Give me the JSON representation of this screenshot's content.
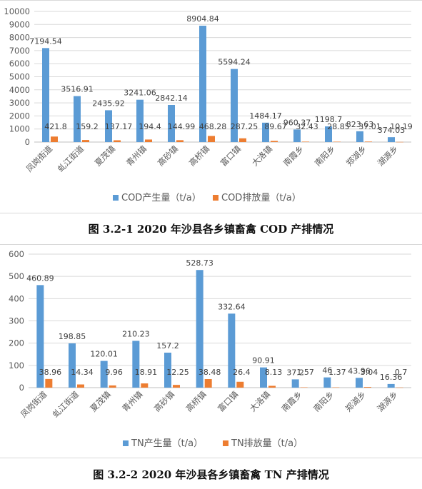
{
  "colors": {
    "produce": "#5B9BD5",
    "emit": "#ED7D31",
    "grid": "#d9d9d9",
    "axis_text": "#595959"
  },
  "captions": {
    "fig1": "图 3.2-1 2020 年沙县各乡镇畜禽 COD 产排情况",
    "fig2": "图 3.2-2 2020 年沙县各乡镇畜禽 TN 产排情况"
  },
  "chart_data": [
    {
      "type": "bar",
      "categories": [
        "凤岗街道",
        "虬江街道",
        "夏茂镇",
        "青州镇",
        "高砂镇",
        "高桥镇",
        "富口镇",
        "大洛镇",
        "南霞乡",
        "南阳乡",
        "郑湖乡",
        "湖源乡"
      ],
      "series": [
        {
          "name": "COD产生量（t/a）",
          "values": [
            7194.54,
            3516.91,
            2435.92,
            3241.06,
            2842.14,
            8904.84,
            5594.24,
            1484.17,
            960.37,
            1198.7,
            823.63,
            374.03
          ],
          "labels": [
            "7194.54",
            "3516.91",
            "2435.92",
            "3241.06",
            "2842.14",
            "8904.84",
            "5594.24",
            "1484.17",
            "960.37",
            "1198.7",
            "823.63",
            "374.03"
          ]
        },
        {
          "name": "COD排放量（t/a）",
          "values": [
            421.8,
            159.2,
            137.17,
            194.4,
            144.99,
            468.28,
            287.25,
            89.67,
            32.43,
            28.85,
            37.01,
            10.19
          ],
          "labels": [
            "421.8",
            "159.2",
            "137.17",
            "194.4",
            "144.99",
            "468.28",
            "287.25",
            "89.67",
            "32.43",
            "28.85",
            "37.01",
            "10.19"
          ]
        }
      ],
      "ylim": [
        0,
        10000
      ],
      "yticks": [
        0,
        1000,
        2000,
        3000,
        4000,
        5000,
        6000,
        7000,
        8000,
        9000,
        10000
      ],
      "grid": true,
      "legend": "bottom"
    },
    {
      "type": "bar",
      "categories": [
        "凤岗街道",
        "虬江街道",
        "夏茂镇",
        "青州镇",
        "高砂镇",
        "高桥镇",
        "富口镇",
        "大洛镇",
        "南霞乡",
        "南阳乡",
        "郑湖乡",
        "湖源乡"
      ],
      "series": [
        {
          "name": "TN产生量（t/a）",
          "values": [
            460.89,
            198.85,
            120.01,
            210.23,
            157.2,
            528.73,
            332.64,
            90.91,
            37.2,
            46,
            43.96,
            16.36
          ],
          "labels": [
            "460.89",
            "198.85",
            "120.01",
            "210.23",
            "157.2",
            "528.73",
            "332.64",
            "90.91",
            "37.2",
            "46",
            "43.96",
            "16.36"
          ]
        },
        {
          "name": "TN排放量（t/a）",
          "values": [
            38.96,
            14.34,
            9.96,
            18.91,
            12.25,
            38.48,
            26.4,
            8.13,
            1.57,
            1.37,
            3.04,
            0.7
          ],
          "labels": [
            "38.96",
            "14.34",
            "9.96",
            "18.91",
            "12.25",
            "38.48",
            "26.4",
            "8.13",
            "1.57",
            "1.37",
            "3.04",
            "0.7"
          ]
        }
      ],
      "ylim": [
        0,
        600
      ],
      "yticks": [
        0,
        100,
        200,
        300,
        400,
        500,
        600
      ],
      "grid": true,
      "legend": "bottom"
    }
  ]
}
